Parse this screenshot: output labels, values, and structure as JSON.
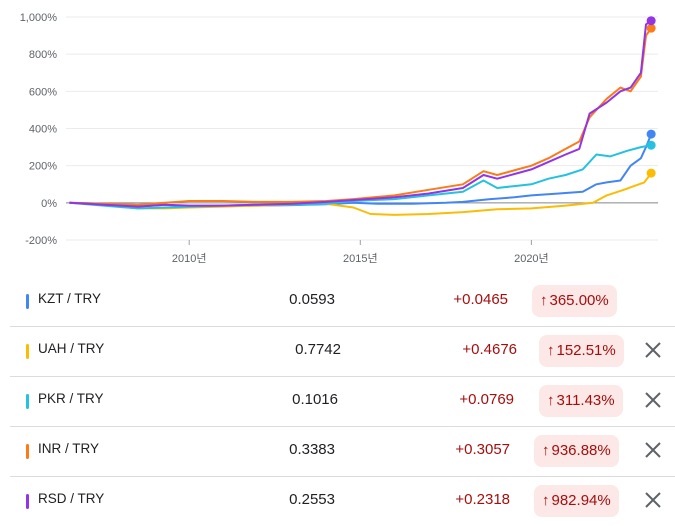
{
  "chart_data": {
    "type": "line",
    "ylim": [
      -200,
      1000
    ],
    "y_ticks": [
      -200,
      0,
      200,
      400,
      600,
      800,
      1000
    ],
    "y_tick_labels": [
      "-200%",
      "0%",
      "200%",
      "400%",
      "600%",
      "800%",
      "1,000%"
    ],
    "xlim": [
      2006.4,
      2023.7
    ],
    "x_ticks": [
      2010,
      2015,
      2020
    ],
    "x_tick_labels": [
      "2010년",
      "2015년",
      "2020년"
    ],
    "grid": true,
    "series": [
      {
        "name": "KZT / TRY",
        "color": "#4285f4",
        "points": [
          [
            2006.5,
            0
          ],
          [
            2007.5,
            -5
          ],
          [
            2008.5,
            -20
          ],
          [
            2009.3,
            -10
          ],
          [
            2010,
            -20
          ],
          [
            2011,
            -18
          ],
          [
            2012,
            -15
          ],
          [
            2013,
            -12
          ],
          [
            2014,
            -8
          ],
          [
            2014.8,
            0
          ],
          [
            2015.5,
            -5
          ],
          [
            2016.5,
            -5
          ],
          [
            2017.5,
            0
          ],
          [
            2018,
            5
          ],
          [
            2018.8,
            20
          ],
          [
            2019.5,
            30
          ],
          [
            2020,
            40
          ],
          [
            2020.8,
            50
          ],
          [
            2021.5,
            60
          ],
          [
            2021.9,
            100
          ],
          [
            2022.2,
            110
          ],
          [
            2022.6,
            120
          ],
          [
            2022.9,
            200
          ],
          [
            2023.2,
            240
          ],
          [
            2023.35,
            300
          ],
          [
            2023.5,
            370
          ]
        ]
      },
      {
        "name": "UAH / TRY",
        "color": "#fbbc04",
        "points": [
          [
            2006.5,
            0
          ],
          [
            2007.5,
            -10
          ],
          [
            2008.5,
            -30
          ],
          [
            2009.3,
            -30
          ],
          [
            2010,
            -25
          ],
          [
            2011,
            -20
          ],
          [
            2012,
            -15
          ],
          [
            2013,
            -10
          ],
          [
            2014,
            -5
          ],
          [
            2014.8,
            -25
          ],
          [
            2015.3,
            -60
          ],
          [
            2016,
            -65
          ],
          [
            2017,
            -60
          ],
          [
            2018,
            -50
          ],
          [
            2019,
            -35
          ],
          [
            2020,
            -30
          ],
          [
            2021,
            -15
          ],
          [
            2021.8,
            0
          ],
          [
            2022.2,
            40
          ],
          [
            2022.7,
            70
          ],
          [
            2023,
            90
          ],
          [
            2023.3,
            110
          ],
          [
            2023.5,
            160
          ]
        ]
      },
      {
        "name": "PKR / TRY",
        "color": "#24c1e0",
        "points": [
          [
            2006.5,
            0
          ],
          [
            2007.5,
            -15
          ],
          [
            2008.5,
            -30
          ],
          [
            2009.3,
            -25
          ],
          [
            2010,
            -20
          ],
          [
            2011,
            -15
          ],
          [
            2012,
            -10
          ],
          [
            2013,
            -10
          ],
          [
            2014,
            -5
          ],
          [
            2014.8,
            10
          ],
          [
            2016,
            20
          ],
          [
            2017,
            40
          ],
          [
            2018,
            60
          ],
          [
            2018.6,
            120
          ],
          [
            2019,
            80
          ],
          [
            2019.5,
            90
          ],
          [
            2020,
            100
          ],
          [
            2020.5,
            130
          ],
          [
            2021,
            150
          ],
          [
            2021.5,
            180
          ],
          [
            2021.9,
            260
          ],
          [
            2022.3,
            250
          ],
          [
            2022.8,
            280
          ],
          [
            2023.2,
            300
          ],
          [
            2023.5,
            310
          ]
        ]
      },
      {
        "name": "INR / TRY",
        "color": "#fa7b17",
        "points": [
          [
            2006.5,
            0
          ],
          [
            2007.5,
            -5
          ],
          [
            2008.5,
            -10
          ],
          [
            2009.3,
            0
          ],
          [
            2010,
            10
          ],
          [
            2011,
            10
          ],
          [
            2012,
            5
          ],
          [
            2013,
            5
          ],
          [
            2014,
            10
          ],
          [
            2014.8,
            20
          ],
          [
            2016,
            40
          ],
          [
            2017,
            70
          ],
          [
            2018,
            100
          ],
          [
            2018.6,
            170
          ],
          [
            2019,
            150
          ],
          [
            2019.6,
            180
          ],
          [
            2020,
            200
          ],
          [
            2020.5,
            240
          ],
          [
            2021,
            290
          ],
          [
            2021.4,
            330
          ],
          [
            2021.7,
            460
          ],
          [
            2022.2,
            560
          ],
          [
            2022.6,
            620
          ],
          [
            2022.9,
            600
          ],
          [
            2023.2,
            680
          ],
          [
            2023.35,
            900
          ],
          [
            2023.5,
            940
          ]
        ]
      },
      {
        "name": "RSD / TRY",
        "color": "#9334e6",
        "points": [
          [
            2006.5,
            0
          ],
          [
            2007.5,
            -10
          ],
          [
            2008.5,
            -20
          ],
          [
            2009.3,
            -10
          ],
          [
            2010,
            -15
          ],
          [
            2011,
            -15
          ],
          [
            2012,
            -10
          ],
          [
            2013,
            -5
          ],
          [
            2014,
            5
          ],
          [
            2014.8,
            15
          ],
          [
            2016,
            30
          ],
          [
            2017,
            50
          ],
          [
            2018,
            80
          ],
          [
            2018.6,
            150
          ],
          [
            2019,
            130
          ],
          [
            2019.6,
            160
          ],
          [
            2020,
            180
          ],
          [
            2020.5,
            220
          ],
          [
            2021,
            260
          ],
          [
            2021.4,
            290
          ],
          [
            2021.7,
            480
          ],
          [
            2022.2,
            540
          ],
          [
            2022.6,
            600
          ],
          [
            2022.9,
            620
          ],
          [
            2023.2,
            700
          ],
          [
            2023.35,
            960
          ],
          [
            2023.5,
            980
          ]
        ]
      }
    ]
  },
  "rows": [
    {
      "pair": "KZT / TRY",
      "color": "#4285f4",
      "price": "0.0593",
      "change": "+0.0465",
      "percent": "365.00%",
      "arrow": "↑",
      "removable": false
    },
    {
      "pair": "UAH / TRY",
      "color": "#fbbc04",
      "price": "0.7742",
      "change": "+0.4676",
      "percent": "152.51%",
      "arrow": "↑",
      "removable": true
    },
    {
      "pair": "PKR / TRY",
      "color": "#24c1e0",
      "price": "0.1016",
      "change": "+0.0769",
      "percent": "311.43%",
      "arrow": "↑",
      "removable": true
    },
    {
      "pair": "INR / TRY",
      "color": "#fa7b17",
      "price": "0.3383",
      "change": "+0.3057",
      "percent": "936.88%",
      "arrow": "↑",
      "removable": true
    },
    {
      "pair": "RSD / TRY",
      "color": "#9334e6",
      "price": "0.2553",
      "change": "+0.2318",
      "percent": "982.94%",
      "arrow": "↑",
      "removable": true
    }
  ],
  "icons": {
    "remove": "close-icon"
  }
}
